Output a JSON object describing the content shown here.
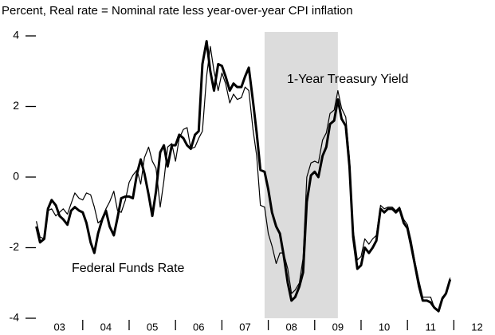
{
  "chart_data": {
    "type": "line",
    "title": "Percent, Real rate = Nominal rate less year-over-year CPI inflation",
    "x": [
      2003,
      2003.08,
      2003.17,
      2003.25,
      2003.33,
      2003.42,
      2003.5,
      2003.58,
      2003.67,
      2003.75,
      2003.83,
      2003.92,
      2004,
      2004.08,
      2004.17,
      2004.25,
      2004.33,
      2004.42,
      2004.5,
      2004.58,
      2004.67,
      2004.75,
      2004.83,
      2004.92,
      2005,
      2005.08,
      2005.17,
      2005.25,
      2005.33,
      2005.42,
      2005.5,
      2005.58,
      2005.67,
      2005.75,
      2005.83,
      2005.92,
      2006,
      2006.08,
      2006.17,
      2006.25,
      2006.33,
      2006.42,
      2006.5,
      2006.58,
      2006.67,
      2006.75,
      2006.83,
      2006.92,
      2007,
      2007.08,
      2007.17,
      2007.25,
      2007.33,
      2007.42,
      2007.5,
      2007.58,
      2007.67,
      2007.75,
      2007.83,
      2007.92,
      2008,
      2008.08,
      2008.17,
      2008.25,
      2008.33,
      2008.42,
      2008.5,
      2008.58,
      2008.67,
      2008.75,
      2008.83,
      2008.92,
      2009,
      2009.08,
      2009.17,
      2009.25,
      2009.33,
      2009.42,
      2009.5,
      2009.58,
      2009.67,
      2009.75,
      2009.83,
      2009.92,
      2010,
      2010.08,
      2010.17,
      2010.25,
      2010.33,
      2010.42,
      2010.5,
      2010.58,
      2010.67,
      2010.75,
      2010.83,
      2010.92,
      2011,
      2011.08,
      2011.17,
      2011.25,
      2011.33,
      2011.42,
      2011.5,
      2011.58,
      2011.67,
      2011.75,
      2011.83,
      2011.92
    ],
    "series": [
      {
        "name": "1-Year Treasury Yield",
        "color": "#000000",
        "linewidth": 1.2,
        "values": [
          -1.25,
          -1.7,
          -1.75,
          -0.95,
          -0.9,
          -1.1,
          -1.0,
          -0.9,
          -1.05,
          -0.75,
          -0.45,
          -0.6,
          -0.65,
          -0.45,
          -0.5,
          -0.85,
          -1.3,
          -1.2,
          -0.9,
          -0.7,
          -0.4,
          -0.95,
          -1.0,
          -0.65,
          -0.15,
          0.05,
          0.2,
          -0.2,
          0.55,
          0.85,
          0.45,
          0.25,
          -0.85,
          -0.1,
          0.85,
          0.95,
          0.45,
          1.1,
          1.35,
          1.4,
          0.8,
          0.85,
          1.1,
          1.3,
          2.85,
          3.7,
          3.0,
          2.45,
          2.95,
          2.65,
          2.1,
          2.35,
          2.2,
          2.25,
          2.55,
          2.45,
          1.35,
          0.6,
          -0.8,
          -0.85,
          -1.6,
          -1.95,
          -2.45,
          -2.15,
          -2.15,
          -2.6,
          -3.3,
          -3.2,
          -3.0,
          -2.3,
          0.0,
          0.4,
          0.45,
          0.4,
          1.05,
          1.25,
          1.8,
          1.9,
          2.45,
          1.95,
          1.7,
          0.55,
          -1.5,
          -2.35,
          -2.25,
          -1.75,
          -1.9,
          -1.75,
          -1.65,
          -0.8,
          -0.9,
          -0.85,
          -0.85,
          -0.95,
          -0.85,
          -1.2,
          -1.35,
          -1.8,
          -2.45,
          -2.95,
          -3.4,
          -3.4,
          -3.4,
          -3.7,
          -3.8,
          -3.4,
          -3.3,
          -2.85
        ]
      },
      {
        "name": "Federal Funds Rate",
        "color": "#000000",
        "linewidth": 3,
        "values": [
          -1.4,
          -1.85,
          -1.75,
          -0.9,
          -0.65,
          -0.8,
          -1.1,
          -1.2,
          -1.35,
          -0.95,
          -0.85,
          -0.95,
          -1.0,
          -1.3,
          -1.85,
          -2.15,
          -1.6,
          -1.2,
          -0.95,
          -1.4,
          -1.65,
          -1.15,
          -0.6,
          -0.55,
          -0.55,
          -0.6,
          0.1,
          0.5,
          0.1,
          -0.5,
          -1.1,
          -0.4,
          0.7,
          0.9,
          0.3,
          0.9,
          0.9,
          1.2,
          1.1,
          0.9,
          0.8,
          1.2,
          1.3,
          3.2,
          3.85,
          3.0,
          2.45,
          3.2,
          3.15,
          2.85,
          2.45,
          2.65,
          2.55,
          2.55,
          2.85,
          3.1,
          2.15,
          1.25,
          0.2,
          0.15,
          -0.35,
          -1.0,
          -1.4,
          -1.6,
          -2.2,
          -3.0,
          -3.5,
          -3.4,
          -3.1,
          -2.7,
          -0.7,
          0.05,
          0.15,
          0.0,
          0.6,
          0.85,
          1.5,
          1.6,
          2.2,
          1.65,
          1.45,
          0.3,
          -1.7,
          -2.6,
          -2.5,
          -2.0,
          -2.15,
          -2.0,
          -1.8,
          -0.9,
          -1.0,
          -0.9,
          -0.9,
          -1.0,
          -0.9,
          -1.3,
          -1.45,
          -1.95,
          -2.55,
          -3.1,
          -3.5,
          -3.5,
          -3.55,
          -3.7,
          -3.8,
          -3.45,
          -3.3,
          -2.9
        ]
      }
    ],
    "xlim": [
      2003,
      2012.87
    ],
    "xticks": [
      {
        "value": 2003.5,
        "label": "03"
      },
      {
        "value": 2004.5,
        "label": "04"
      },
      {
        "value": 2005.5,
        "label": "05"
      },
      {
        "value": 2006.5,
        "label": "06"
      },
      {
        "value": 2007.5,
        "label": "07"
      },
      {
        "value": 2008.5,
        "label": "08"
      },
      {
        "value": 2009.5,
        "label": "09"
      },
      {
        "value": 2010.5,
        "label": "10"
      },
      {
        "value": 2011.5,
        "label": "11"
      },
      {
        "value": 2012.5,
        "label": "12"
      }
    ],
    "xminorticks": [
      2004,
      2005,
      2006,
      2007,
      2008,
      2009,
      2010,
      2011,
      2012
    ],
    "ylim": [
      -4,
      4
    ],
    "yticks": [
      -4,
      -2,
      0,
      2,
      4
    ],
    "shaded": [
      2007.92,
      2009.5
    ],
    "shade_color": "#dcdcdc",
    "grid": false
  }
}
